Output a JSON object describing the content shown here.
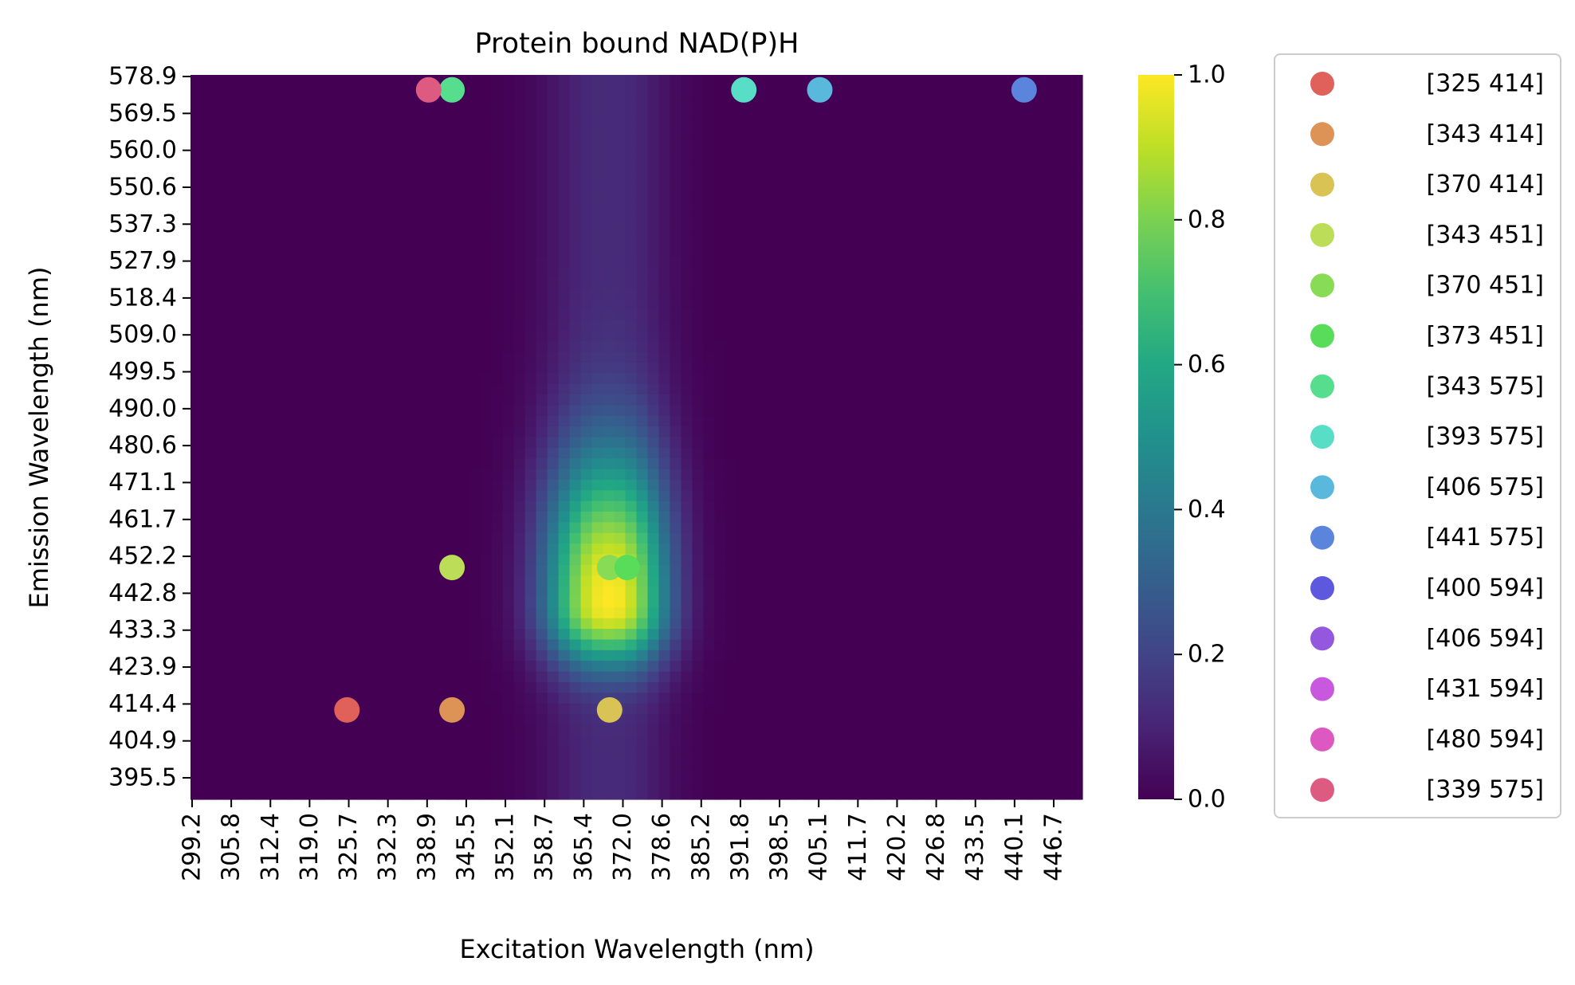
{
  "chart_data": {
    "type": "heatmap",
    "title": "Protein bound NAD(P)H",
    "xlabel": "Excitation Wavelength (nm)",
    "ylabel": "Emission Wavelength (nm)",
    "x_ticks": [
      "299.2",
      "305.8",
      "312.4",
      "319.0",
      "325.7",
      "332.3",
      "338.9",
      "345.5",
      "352.1",
      "358.7",
      "365.4",
      "372.0",
      "378.6",
      "385.2",
      "391.8",
      "398.5",
      "405.1",
      "411.7",
      "420.2",
      "426.8",
      "433.5",
      "440.1",
      "446.7"
    ],
    "y_ticks": [
      "578.9",
      "569.5",
      "560.0",
      "550.6",
      "537.3",
      "527.9",
      "518.4",
      "509.0",
      "499.5",
      "490.0",
      "480.6",
      "471.1",
      "461.7",
      "452.2",
      "442.8",
      "433.3",
      "423.9",
      "414.4",
      "404.9",
      "395.5"
    ],
    "xlim": [
      298.2,
      451.0
    ],
    "ylim": [
      390.8,
      578.9
    ],
    "colormap": "viridis",
    "colorbar": {
      "ticks": [
        "0.0",
        "0.2",
        "0.4",
        "0.6",
        "0.8",
        "1.0"
      ],
      "range": [
        0,
        1
      ]
    },
    "peak": {
      "excitation": 370.0,
      "emission": 442.0,
      "value": 1.0
    },
    "legend_position": "outside-right",
    "points": [
      {
        "label": "[325 414]",
        "x": 325,
        "y": 414,
        "color": "#e0605a"
      },
      {
        "label": "[343 414]",
        "x": 343,
        "y": 414,
        "color": "#dd9256"
      },
      {
        "label": "[370 414]",
        "x": 370,
        "y": 414,
        "color": "#d9c354"
      },
      {
        "label": "[343 451]",
        "x": 343,
        "y": 451,
        "color": "#bcdd58"
      },
      {
        "label": "[370 451]",
        "x": 370,
        "y": 451,
        "color": "#88dc55"
      },
      {
        "label": "[373 451]",
        "x": 373,
        "y": 451,
        "color": "#58dc5a"
      },
      {
        "label": "[343 575]",
        "x": 343,
        "y": 575,
        "color": "#56dd8d"
      },
      {
        "label": "[393 575]",
        "x": 393,
        "y": 575,
        "color": "#58ddc6"
      },
      {
        "label": "[406 575]",
        "x": 406,
        "y": 575,
        "color": "#5bb8dd"
      },
      {
        "label": "[441 575]",
        "x": 441,
        "y": 575,
        "color": "#5b85dd"
      },
      {
        "label": "[400 594]",
        "x": 400,
        "y": 594,
        "color": "#5d58dd"
      },
      {
        "label": "[406 594]",
        "x": 406,
        "y": 594,
        "color": "#9358dd"
      },
      {
        "label": "[431 594]",
        "x": 431,
        "y": 594,
        "color": "#c858dd"
      },
      {
        "label": "[480 594]",
        "x": 480,
        "y": 594,
        "color": "#dd58c0"
      },
      {
        "label": "[339 575]",
        "x": 339,
        "y": 575,
        "color": "#dd5a80"
      }
    ]
  }
}
